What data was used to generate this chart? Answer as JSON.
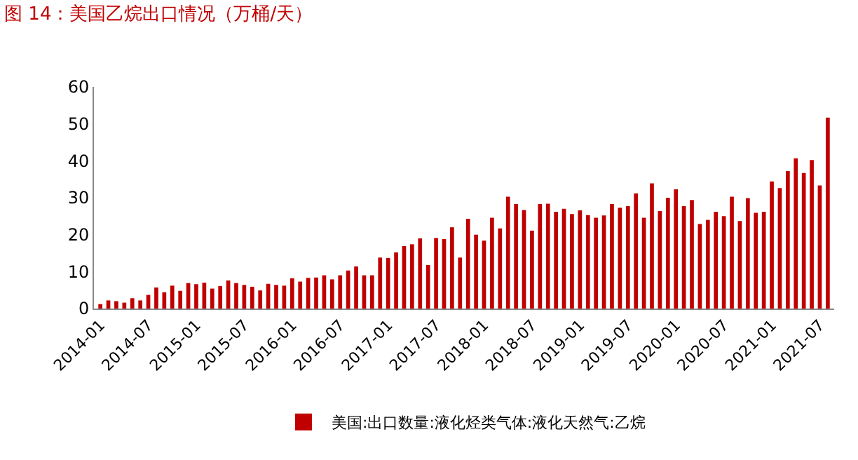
{
  "chart_data": {
    "type": "bar",
    "title": "图 14：美国乙烷出口情况（万桶/天）",
    "categories": [
      "2014-01",
      null,
      null,
      null,
      null,
      null,
      "2014-07",
      null,
      null,
      null,
      null,
      null,
      "2015-01",
      null,
      null,
      null,
      null,
      null,
      "2015-07",
      null,
      null,
      null,
      null,
      null,
      "2016-01",
      null,
      null,
      null,
      null,
      null,
      "2016-07",
      null,
      null,
      null,
      null,
      null,
      "2017-01",
      null,
      null,
      null,
      null,
      null,
      "2017-07",
      null,
      null,
      null,
      null,
      null,
      "2018-01",
      null,
      null,
      null,
      null,
      null,
      "2018-07",
      null,
      null,
      null,
      null,
      null,
      "2019-01",
      null,
      null,
      null,
      null,
      null,
      "2019-07",
      null,
      null,
      null,
      null,
      null,
      "2020-01",
      null,
      null,
      null,
      null,
      null,
      "2020-07",
      null,
      null,
      null,
      null,
      null,
      "2021-01",
      null,
      null,
      null,
      null,
      null,
      "2021-07",
      null
    ],
    "series": [
      {
        "name": "美国:出口数量:液化烃类气体:液化天然气:乙烷",
        "color": "#c00000",
        "values": [
          1.2,
          2.2,
          2.0,
          1.6,
          2.8,
          2.2,
          3.7,
          5.7,
          4.4,
          6.2,
          4.8,
          6.9,
          6.6,
          7.0,
          5.4,
          6.1,
          7.6,
          6.9,
          6.4,
          5.9,
          4.9,
          6.7,
          6.4,
          6.2,
          8.2,
          7.3,
          8.3,
          8.4,
          9.0,
          7.9,
          9.0,
          10.3,
          11.4,
          9.0,
          9.0,
          13.8,
          13.7,
          15.2,
          16.9,
          17.4,
          19.0,
          11.8,
          19.1,
          18.8,
          22.0,
          13.8,
          24.3,
          20.0,
          18.4,
          24.6,
          21.7,
          30.3,
          28.3,
          26.7,
          21.1,
          28.3,
          28.4,
          26.2,
          27.0,
          25.6,
          26.6,
          25.3,
          24.6,
          25.2,
          28.3,
          27.3,
          27.7,
          31.2,
          24.6,
          33.9,
          26.4,
          30.0,
          32.3,
          27.7,
          29.4,
          22.9,
          24.0,
          26.2,
          25.0,
          30.3,
          23.7,
          29.9,
          25.9,
          26.2,
          34.4,
          32.6,
          37.2,
          40.7,
          36.7,
          40.2,
          33.3,
          51.7
        ]
      }
    ],
    "ylim": [
      0,
      60
    ],
    "yticks": [
      0,
      10,
      20,
      30,
      40,
      50,
      60
    ],
    "grid": false,
    "legend": "bottom"
  }
}
